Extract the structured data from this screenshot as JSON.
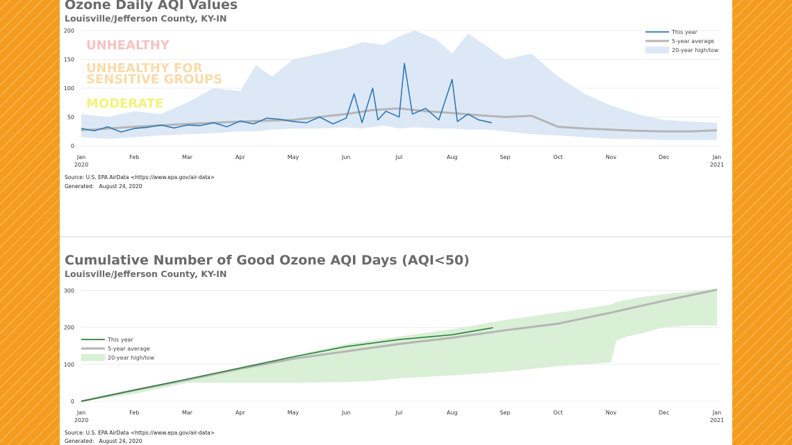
{
  "chart_data": [
    {
      "type": "area",
      "title": "Ozone Daily AQI Values",
      "subtitle": "Louisville/Jefferson County, KY-IN",
      "y_ticks": [
        0,
        50,
        100,
        150,
        200
      ],
      "ylim": [
        0,
        200
      ],
      "x_ticks": [
        "Jan",
        "Feb",
        "Mar",
        "Apr",
        "May",
        "Jun",
        "Jul",
        "Aug",
        "Sep",
        "Oct",
        "Nov",
        "Dec",
        "Jan"
      ],
      "x_tick_years": {
        "0": "2020",
        "12": "2021"
      },
      "grid": true,
      "legend_position": "top-right",
      "legend": [
        {
          "label": "This year",
          "color": "#2f78b5",
          "kind": "line"
        },
        {
          "label": "5-year average",
          "color": "#b5b5b5",
          "kind": "thick-line"
        },
        {
          "label": "20-year high/low",
          "color": "#dde8f6",
          "kind": "band"
        }
      ],
      "annotations": [
        {
          "text": "UNHEALTHY",
          "color": "#f7c2c2"
        },
        {
          "text": "UNHEALTHY FOR SENSITIVE GROUPS",
          "color": "#f8dba9"
        },
        {
          "text": "MODERATE",
          "color": "#f3f27a"
        }
      ],
      "series": [
        {
          "name": "This year",
          "color": "#2f78b5",
          "x_month": [
            0,
            0.25,
            0.5,
            0.75,
            1,
            1.25,
            1.5,
            1.75,
            2,
            2.25,
            2.5,
            2.75,
            3,
            3.25,
            3.5,
            3.75,
            4,
            4.25,
            4.5,
            4.75,
            5,
            5.15,
            5.3,
            5.5,
            5.6,
            5.75,
            6,
            6.1,
            6.25,
            6.5,
            6.75,
            7,
            7.1,
            7.3,
            7.5,
            7.75
          ],
          "values": [
            30,
            26,
            33,
            24,
            30,
            32,
            36,
            31,
            36,
            35,
            40,
            33,
            43,
            38,
            48,
            46,
            42,
            40,
            50,
            38,
            48,
            90,
            40,
            100,
            45,
            60,
            50,
            143,
            55,
            65,
            45,
            115,
            42,
            55,
            45,
            40
          ]
        },
        {
          "name": "5-year average",
          "color": "#b5b5b5",
          "x_month": [
            0,
            1,
            2,
            3,
            4,
            4.5,
            5,
            5.5,
            6,
            6.5,
            7,
            7.5,
            8,
            8.5,
            9,
            9.5,
            10,
            10.5,
            11,
            11.5,
            12
          ],
          "values": [
            27,
            33,
            38,
            42,
            45,
            50,
            55,
            62,
            65,
            60,
            57,
            53,
            50,
            52,
            33,
            30,
            28,
            26,
            25,
            25,
            27
          ]
        },
        {
          "name": "20-year high/low",
          "color": "#dde8f6",
          "x_month": [
            0,
            0.5,
            1,
            1.5,
            2,
            2.5,
            3,
            3.3,
            3.6,
            4,
            4.5,
            5,
            5.3,
            5.7,
            6,
            6.3,
            6.7,
            7,
            7.3,
            7.7,
            8,
            8.5,
            9,
            9.5,
            10,
            10.5,
            11,
            11.5,
            12
          ],
          "high": [
            55,
            50,
            60,
            55,
            75,
            100,
            95,
            140,
            120,
            150,
            160,
            170,
            180,
            175,
            190,
            200,
            185,
            160,
            195,
            170,
            150,
            160,
            120,
            90,
            70,
            55,
            45,
            42,
            40
          ],
          "low": [
            15,
            12,
            15,
            18,
            20,
            22,
            25,
            25,
            28,
            30,
            30,
            32,
            30,
            35,
            30,
            32,
            30,
            30,
            28,
            28,
            25,
            20,
            18,
            15,
            12,
            12,
            10,
            10,
            10
          ]
        }
      ],
      "source": "Source: U.S. EPA AirData <https://www.epa.gov/air-data>",
      "generated_label": "Generated:",
      "generated_date": "August 24, 2020"
    },
    {
      "type": "line",
      "title": "Cumulative Number of Good Ozone AQI Days (AQI<50)",
      "subtitle": "Louisville/Jefferson County, KY-IN",
      "y_ticks": [
        0,
        100,
        200,
        300
      ],
      "ylim": [
        0,
        310
      ],
      "x_ticks": [
        "Jan",
        "Feb",
        "Mar",
        "Apr",
        "May",
        "Jun",
        "Jul",
        "Aug",
        "Sep",
        "Oct",
        "Nov",
        "Dec",
        "Jan"
      ],
      "x_tick_years": {
        "0": "2020",
        "12": "2021"
      },
      "grid": true,
      "legend_position": "center-left",
      "legend": [
        {
          "label": "This year",
          "color": "#2e7d3c",
          "kind": "line"
        },
        {
          "label": "5-year average",
          "color": "#b5b5b5",
          "kind": "thick-line"
        },
        {
          "label": "20-year high/low",
          "color": "#d9efd6",
          "kind": "band"
        }
      ],
      "series": [
        {
          "name": "This year",
          "color": "#2e7d3c",
          "x_month": [
            0,
            1,
            2,
            3,
            4,
            5,
            6,
            7,
            7.77
          ],
          "values": [
            0,
            30,
            60,
            90,
            120,
            148,
            167,
            180,
            199
          ]
        },
        {
          "name": "5-year average",
          "color": "#b5b5b5",
          "x_month": [
            0,
            1,
            2,
            3,
            4,
            5,
            6,
            7,
            8,
            9,
            10,
            11,
            12
          ],
          "values": [
            0,
            30,
            58,
            88,
            115,
            135,
            155,
            172,
            192,
            210,
            240,
            272,
            302
          ]
        },
        {
          "name": "20-year high/low",
          "color": "#d9efd6",
          "x_month": [
            0,
            1,
            2,
            3,
            4,
            5,
            5.5,
            6,
            7,
            8,
            9,
            9.5,
            10,
            10.1,
            10.3,
            10.6,
            11,
            11.5,
            12
          ],
          "high": [
            0,
            31,
            62,
            93,
            124,
            155,
            165,
            175,
            195,
            220,
            240,
            250,
            262,
            268,
            275,
            282,
            290,
            297,
            305
          ],
          "low": [
            0,
            20,
            50,
            50,
            50,
            52,
            55,
            62,
            70,
            80,
            95,
            100,
            105,
            165,
            175,
            185,
            200,
            205,
            205
          ]
        }
      ],
      "source": "Source: U.S. EPA AirData <https://www.epa.gov/air-data>",
      "generated_label": "Generated:",
      "generated_date": "August 24, 2020"
    }
  ]
}
